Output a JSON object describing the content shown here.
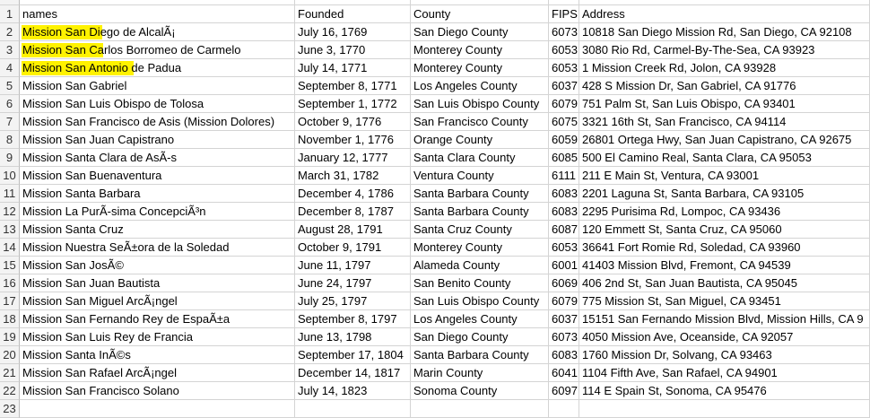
{
  "sheet": {
    "row_headers": [
      "1",
      "2",
      "3",
      "4",
      "5",
      "6",
      "7",
      "8",
      "9",
      "10",
      "11",
      "12",
      "13",
      "14",
      "15",
      "16",
      "17",
      "18",
      "19",
      "20",
      "21",
      "22",
      "23"
    ],
    "rows": [
      [
        "names",
        "Founded",
        "County",
        "FIPS",
        "Address"
      ],
      [
        "Mission San Diego de AlcalÃ¡",
        "July 16, 1769",
        "San Diego  County",
        6073,
        "10818 San Diego Mission Rd, San Diego, CA 92108"
      ],
      [
        "Mission San Carlos Borromeo de Carmelo",
        "June 3, 1770",
        "Monterey County",
        6053,
        "3080 Rio Rd, Carmel-By-The-Sea, CA 93923"
      ],
      [
        "Mission San Antonio de Padua",
        "July 14, 1771",
        "Monterey County",
        6053,
        "1 Mission Creek Rd, Jolon, CA 93928"
      ],
      [
        "Mission San Gabriel",
        "September 8, 1771",
        "Los Angeles County",
        6037,
        "428 S Mission Dr, San Gabriel, CA 91776"
      ],
      [
        "Mission San Luis Obispo de Tolosa",
        "September 1, 1772",
        "San Luis Obispo County",
        6079,
        "751 Palm St, San Luis Obispo, CA 93401"
      ],
      [
        "Mission San Francisco de Asis (Mission Dolores)",
        "October 9, 1776",
        "San Francisco County",
        6075,
        "3321 16th St, San Francisco, CA 94114"
      ],
      [
        "Mission San Juan Capistrano",
        "November 1, 1776",
        "Orange County",
        6059,
        "26801 Ortega Hwy, San Juan Capistrano, CA 92675"
      ],
      [
        "Mission Santa Clara de AsÃ-s",
        "January 12, 1777",
        "Santa Clara  County",
        6085,
        "500 El Camino Real, Santa Clara, CA 95053"
      ],
      [
        "Mission San Buenaventura",
        "March 31, 1782",
        "Ventura County",
        6111,
        "211 E Main St, Ventura, CA 93001"
      ],
      [
        "Mission Santa Barbara",
        "December 4, 1786",
        "Santa Barbara County",
        6083,
        "2201 Laguna St, Santa Barbara, CA 93105"
      ],
      [
        "Mission La PurÃ-sima ConcepciÃ³n",
        "December 8, 1787",
        "Santa Barbara County",
        6083,
        "2295 Purisima Rd, Lompoc, CA 93436"
      ],
      [
        "Mission Santa Cruz",
        "August 28, 1791",
        "Santa Cruz County",
        6087,
        "120 Emmett St, Santa Cruz, CA 95060"
      ],
      [
        "Mission Nuestra SeÃ±ora de la Soledad",
        "October 9, 1791",
        "Monterey  County",
        6053,
        "36641 Fort Romie Rd, Soledad, CA 93960"
      ],
      [
        "Mission San JosÃ©",
        "June 11, 1797",
        "Alameda County",
        6001,
        "41403 Mission Blvd, Fremont, CA 94539"
      ],
      [
        "Mission San Juan Bautista",
        "June 24, 1797",
        "San Benito County",
        6069,
        "406 2nd St, San Juan Bautista, CA 95045"
      ],
      [
        "Mission San Miguel ArcÃ¡ngel",
        "July 25, 1797",
        "San Luis Obispo County",
        6079,
        "775 Mission St, San Miguel, CA 93451"
      ],
      [
        "Mission San Fernando Rey de EspaÃ±a",
        "September 8, 1797",
        "Los Angeles County",
        6037,
        "15151 San Fernando Mission Blvd, Mission Hills, CA 9"
      ],
      [
        "Mission San Luis Rey de Francia",
        "June 13, 1798",
        "San Diego County",
        6073,
        "4050 Mission Ave, Oceanside, CA 92057"
      ],
      [
        "Mission Santa InÃ©s",
        "September 17, 1804",
        "Santa Barbara County",
        6083,
        "1760 Mission Dr, Solvang, CA 93463"
      ],
      [
        "Mission San Rafael ArcÃ¡ngel",
        "December 14, 1817",
        "Marin County",
        6041,
        "1104 Fifth Ave, San Rafael, CA 94901"
      ],
      [
        "Mission San Francisco Solano",
        "July 14, 1823",
        "Sonoma County",
        6097,
        "114 E Spain St, Sonoma, CA 95476"
      ]
    ]
  }
}
